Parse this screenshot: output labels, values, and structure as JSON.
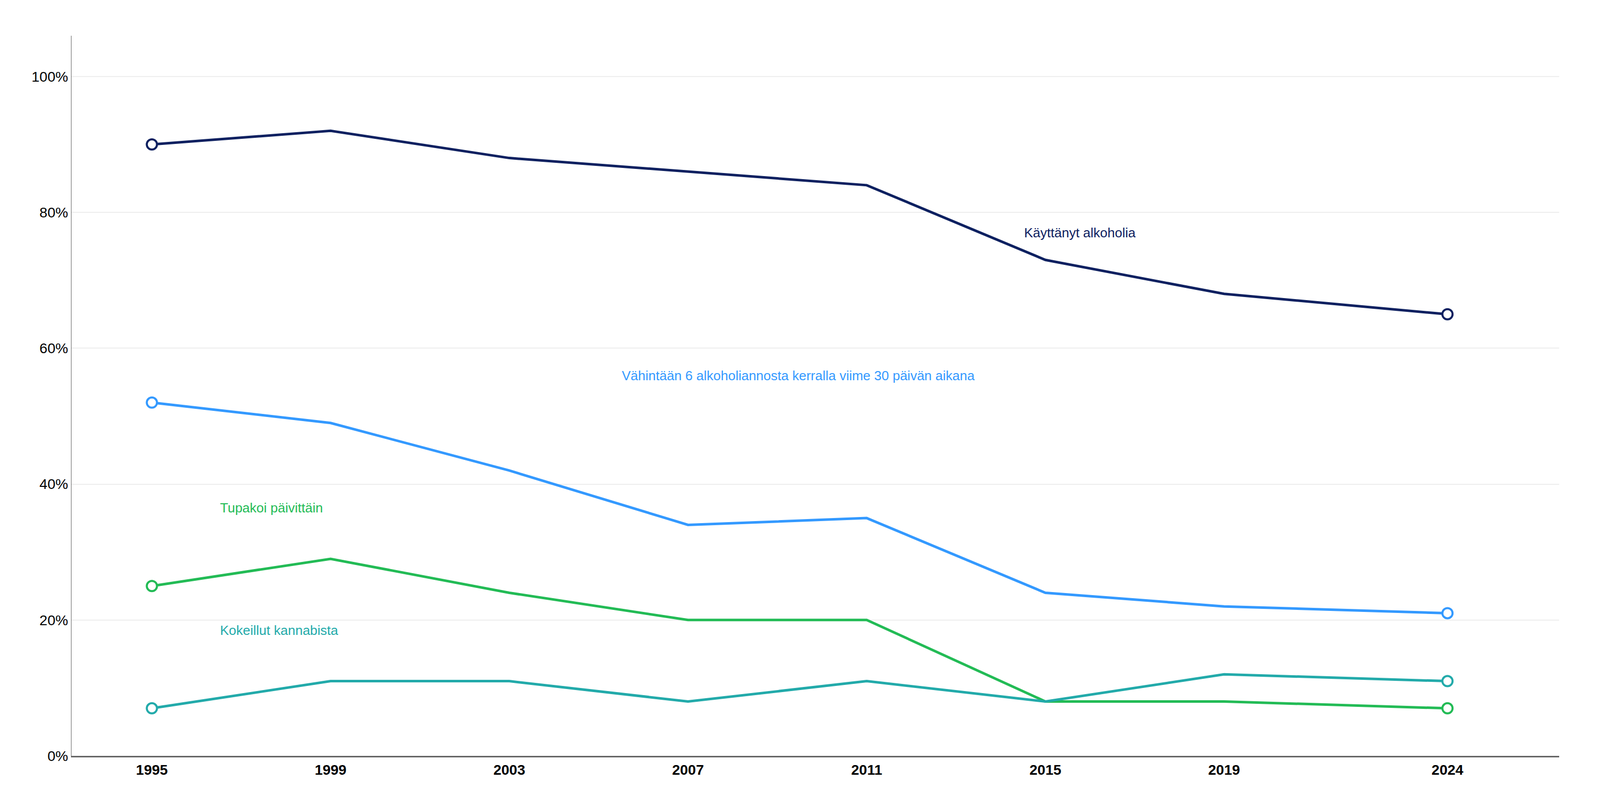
{
  "chart_data": {
    "type": "line",
    "x": [
      1995,
      1999,
      2003,
      2007,
      2011,
      2015,
      2019,
      2024
    ],
    "series": [
      {
        "color": "#0d2060",
        "values": [
          90,
          92,
          88,
          86,
          84,
          73,
          68,
          65
        ]
      },
      {
        "color": "#3399ff",
        "values": [
          52,
          49,
          42,
          34,
          35,
          24,
          22,
          21
        ]
      },
      {
        "color": "#22bb55",
        "values": [
          25,
          29,
          24,
          20,
          20,
          8,
          8,
          7
        ]
      },
      {
        "color": "#22aaaa",
        "values": [
          7,
          11,
          11,
          8,
          11,
          8,
          12,
          11
        ]
      }
    ],
    "annotations": [
      {
        "text": "Käyttänyt alkoholia",
        "x": 2014.5,
        "y": 77,
        "color": "#0d2060"
      },
      {
        "text": "Vähintään 6 alkoholiannosta kerralla viime 30 päivän aikana",
        "x": 2005.5,
        "y": 56,
        "color": "#3399ff"
      },
      {
        "text": "Tupakoi päivittäin",
        "x": 1996.5,
        "y": 36.5,
        "color": "#22bb55"
      },
      {
        "text": "Kokeillut kannabista",
        "x": 1996.5,
        "y": 18.5,
        "color": "#22aaaa"
      }
    ],
    "xlim": [
      1993.2,
      2026.5
    ],
    "xticks": [
      1995,
      1999,
      2003,
      2007,
      2011,
      2015,
      2019,
      2024
    ],
    "ylim": [
      0,
      106
    ],
    "yticks": [
      {
        "value": 0,
        "label": "0%"
      },
      {
        "value": 20,
        "label": "20%"
      },
      {
        "value": 40,
        "label": "40%"
      },
      {
        "value": 60,
        "label": "60%"
      },
      {
        "value": 80,
        "label": "80%"
      },
      {
        "value": 100,
        "label": "100%"
      }
    ],
    "grid": true
  }
}
